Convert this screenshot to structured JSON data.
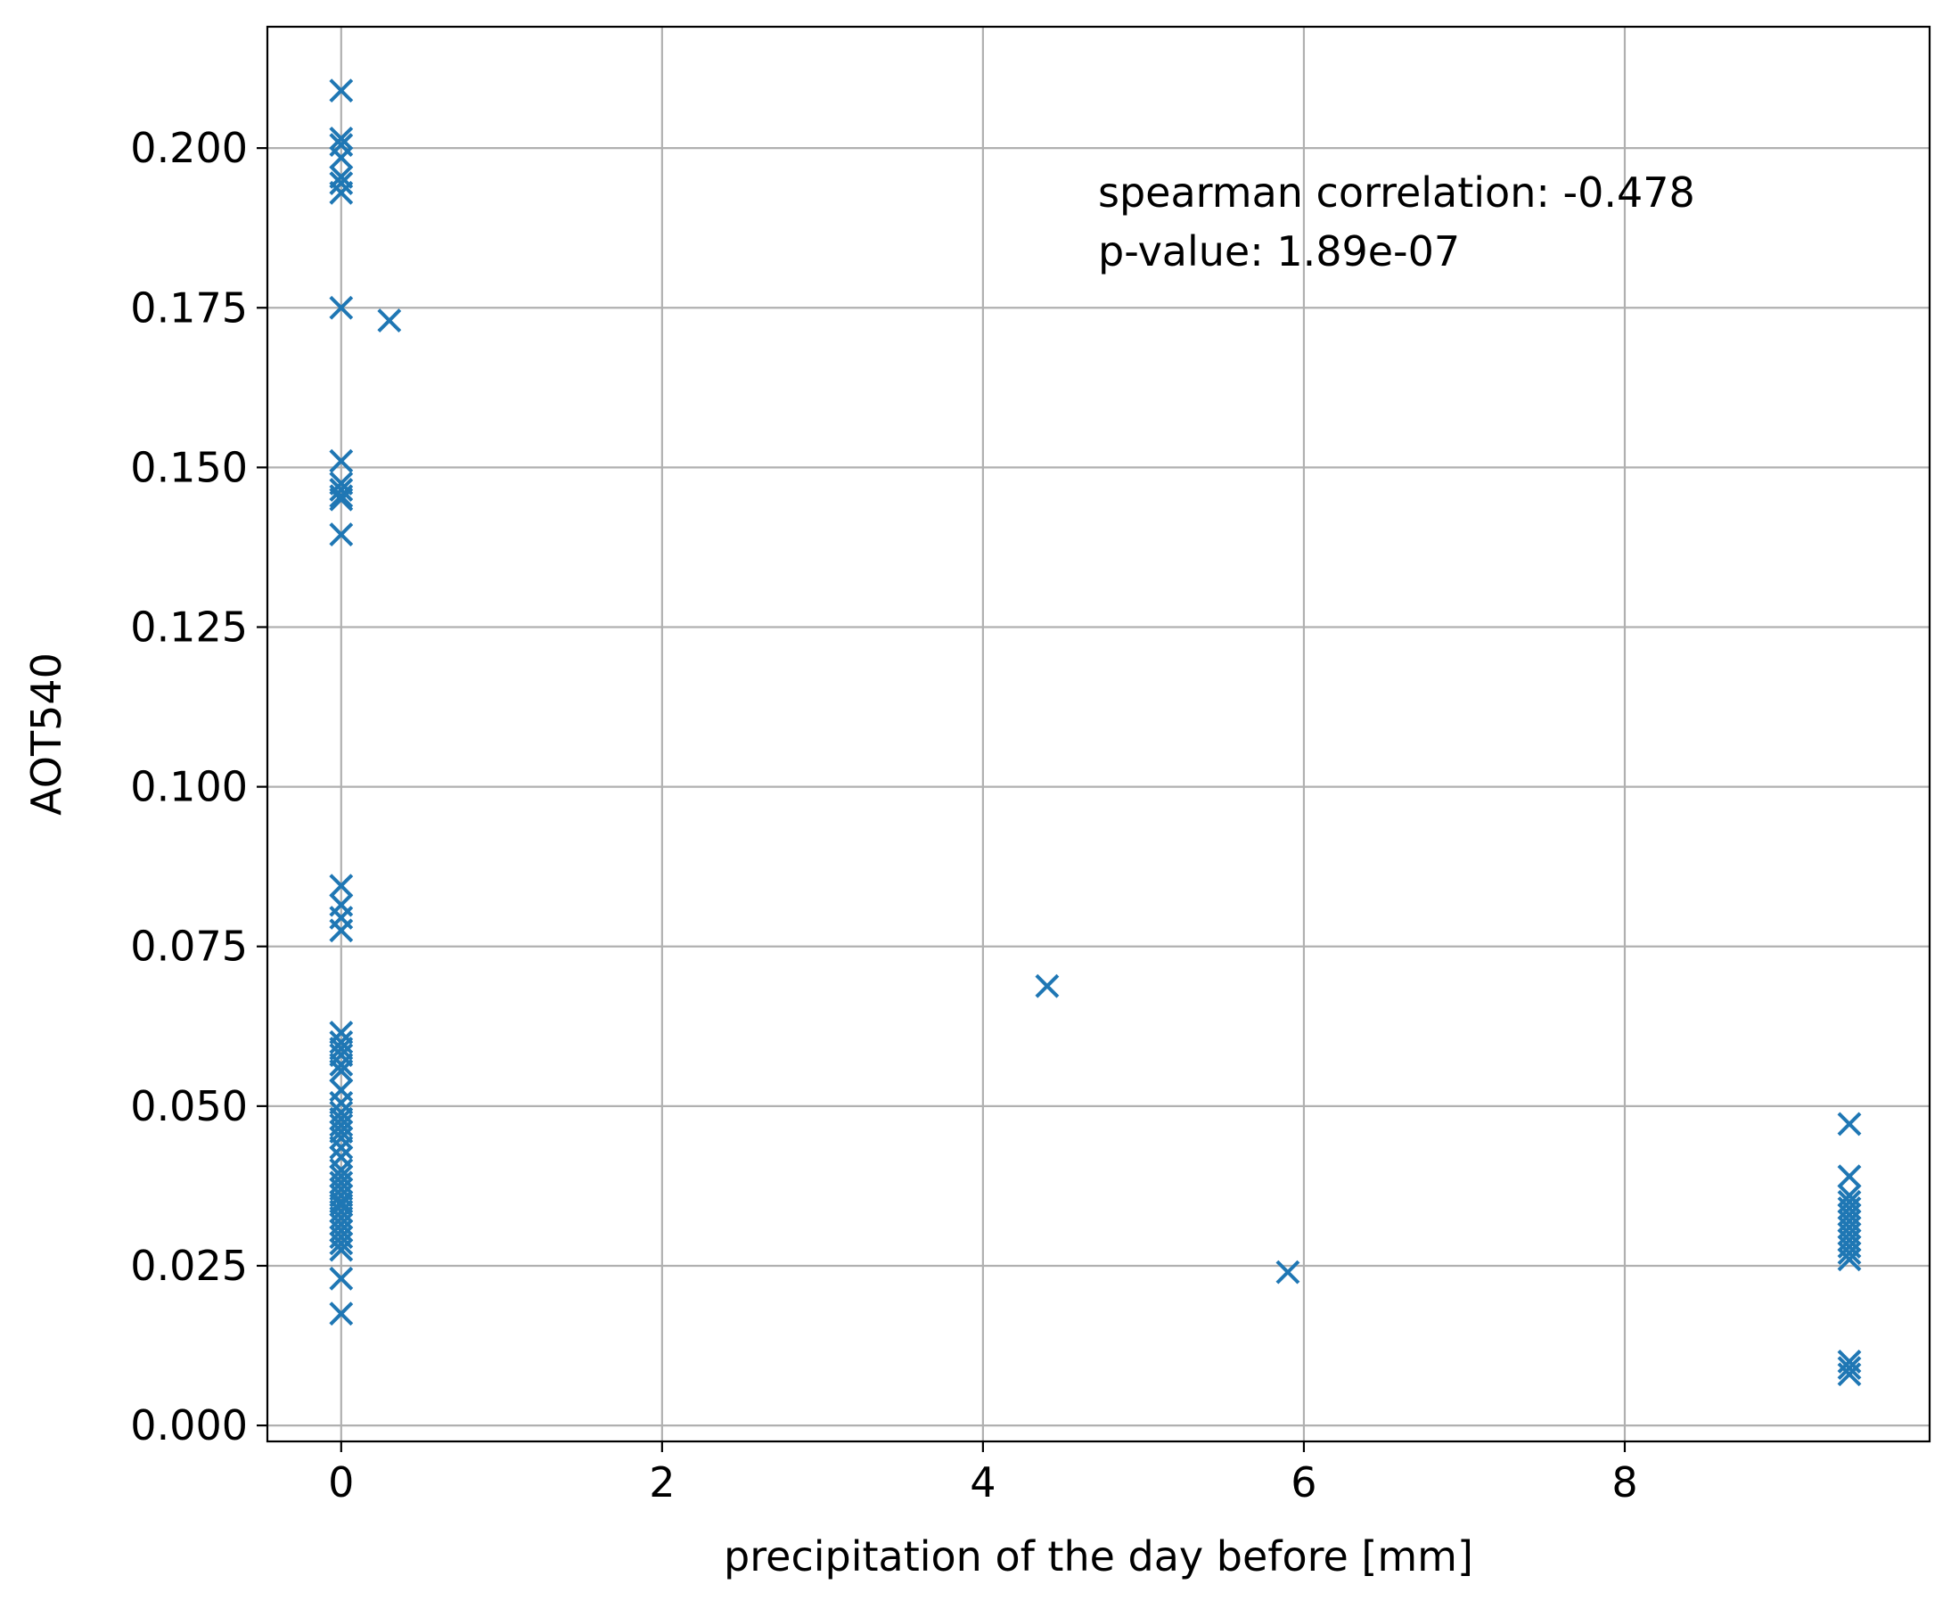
{
  "chart_data": {
    "type": "scatter",
    "title": "",
    "xlabel": "precipitation of the day before [mm]",
    "ylabel": "AOT540",
    "xlim": [
      -0.46,
      9.9
    ],
    "ylim": [
      -0.0025,
      0.219
    ],
    "xticks": [
      0,
      2,
      4,
      6,
      8
    ],
    "xtick_labels": [
      "0",
      "2",
      "4",
      "6",
      "8"
    ],
    "yticks": [
      0.0,
      0.025,
      0.05,
      0.075,
      0.1,
      0.125,
      0.15,
      0.175,
      0.2
    ],
    "ytick_labels": [
      "0.000",
      "0.025",
      "0.050",
      "0.075",
      "0.100",
      "0.125",
      "0.150",
      "0.175",
      "0.200"
    ],
    "grid": true,
    "marker": "x",
    "color": "#1f77b4",
    "annotation": [
      "spearman correlation: -0.478",
      "p-value: 1.89e-07"
    ],
    "points": [
      {
        "x": 0,
        "y": 0.209
      },
      {
        "x": 0,
        "y": 0.2015
      },
      {
        "x": 0,
        "y": 0.2005
      },
      {
        "x": 0,
        "y": 0.1985
      },
      {
        "x": 0,
        "y": 0.1955
      },
      {
        "x": 0,
        "y": 0.1945
      },
      {
        "x": 0,
        "y": 0.193
      },
      {
        "x": 0,
        "y": 0.175
      },
      {
        "x": 0,
        "y": 0.151
      },
      {
        "x": 0,
        "y": 0.1475
      },
      {
        "x": 0,
        "y": 0.1465
      },
      {
        "x": 0,
        "y": 0.1455
      },
      {
        "x": 0,
        "y": 0.145
      },
      {
        "x": 0,
        "y": 0.1395
      },
      {
        "x": 0,
        "y": 0.0845
      },
      {
        "x": 0,
        "y": 0.0815
      },
      {
        "x": 0,
        "y": 0.0795
      },
      {
        "x": 0,
        "y": 0.0775
      },
      {
        "x": 0,
        "y": 0.0615
      },
      {
        "x": 0,
        "y": 0.06
      },
      {
        "x": 0,
        "y": 0.059
      },
      {
        "x": 0,
        "y": 0.058
      },
      {
        "x": 0,
        "y": 0.0565
      },
      {
        "x": 0,
        "y": 0.0555
      },
      {
        "x": 0,
        "y": 0.0525
      },
      {
        "x": 0,
        "y": 0.0505
      },
      {
        "x": 0,
        "y": 0.049
      },
      {
        "x": 0,
        "y": 0.048
      },
      {
        "x": 0,
        "y": 0.047
      },
      {
        "x": 0,
        "y": 0.046
      },
      {
        "x": 0,
        "y": 0.045
      },
      {
        "x": 0,
        "y": 0.0435
      },
      {
        "x": 0,
        "y": 0.042
      },
      {
        "x": 0,
        "y": 0.04
      },
      {
        "x": 0,
        "y": 0.039
      },
      {
        "x": 0,
        "y": 0.038
      },
      {
        "x": 0,
        "y": 0.037
      },
      {
        "x": 0,
        "y": 0.036
      },
      {
        "x": 0,
        "y": 0.035
      },
      {
        "x": 0,
        "y": 0.0345
      },
      {
        "x": 0,
        "y": 0.0335
      },
      {
        "x": 0,
        "y": 0.0325
      },
      {
        "x": 0,
        "y": 0.0315
      },
      {
        "x": 0,
        "y": 0.0305
      },
      {
        "x": 0,
        "y": 0.0295
      },
      {
        "x": 0,
        "y": 0.0285
      },
      {
        "x": 0,
        "y": 0.0275
      },
      {
        "x": 0,
        "y": 0.023
      },
      {
        "x": 0,
        "y": 0.0175
      },
      {
        "x": 0.3,
        "y": 0.173
      },
      {
        "x": 4.4,
        "y": 0.0688
      },
      {
        "x": 5.9,
        "y": 0.024
      },
      {
        "x": 9.4,
        "y": 0.0472
      },
      {
        "x": 9.4,
        "y": 0.039
      },
      {
        "x": 9.4,
        "y": 0.036
      },
      {
        "x": 9.4,
        "y": 0.035
      },
      {
        "x": 9.4,
        "y": 0.034
      },
      {
        "x": 9.4,
        "y": 0.033
      },
      {
        "x": 9.4,
        "y": 0.032
      },
      {
        "x": 9.4,
        "y": 0.031
      },
      {
        "x": 9.4,
        "y": 0.03
      },
      {
        "x": 9.4,
        "y": 0.029
      },
      {
        "x": 9.4,
        "y": 0.028
      },
      {
        "x": 9.4,
        "y": 0.027
      },
      {
        "x": 9.4,
        "y": 0.026
      },
      {
        "x": 9.4,
        "y": 0.01
      },
      {
        "x": 9.4,
        "y": 0.009
      },
      {
        "x": 9.4,
        "y": 0.008
      }
    ]
  }
}
